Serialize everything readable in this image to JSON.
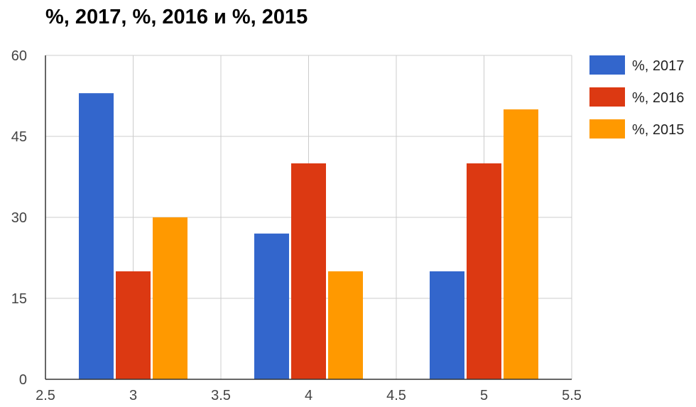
{
  "chart_data": {
    "type": "bar",
    "title": "%, 2017, %, 2016 и %, 2015",
    "xlabel": "",
    "ylabel": "",
    "x": [
      3,
      4,
      5
    ],
    "xlim": [
      2.5,
      5.5
    ],
    "x_ticks": [
      "2.5",
      "3",
      "3.5",
      "4",
      "4.5",
      "5",
      "5.5"
    ],
    "ylim": [
      0,
      60
    ],
    "y_ticks": [
      "0",
      "15",
      "30",
      "45",
      "60"
    ],
    "grid": true,
    "legend_position": "right",
    "series": [
      {
        "name": "%, 2017",
        "color": "#3366cc",
        "values": [
          53,
          27,
          20
        ]
      },
      {
        "name": "%, 2016",
        "color": "#dc3912",
        "values": [
          20,
          40,
          40
        ]
      },
      {
        "name": "%, 2015",
        "color": "#ff9900",
        "values": [
          30,
          20,
          50
        ]
      }
    ]
  }
}
